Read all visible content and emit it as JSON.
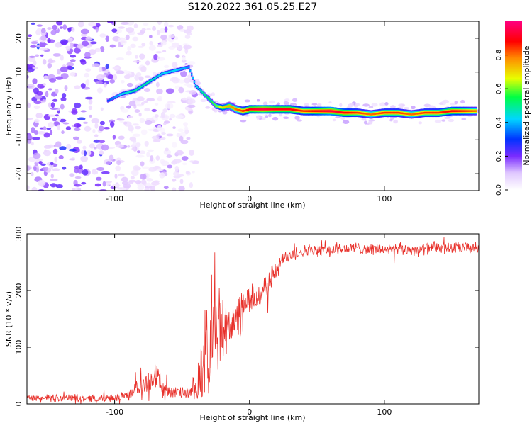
{
  "title": "S120.2022.361.05.25.E27",
  "colors": {
    "snr_line": "#e8302a",
    "background": "#ffffff",
    "axes": "#000000",
    "spectral_colormap": [
      "#ffffff",
      "#e8d0ff",
      "#7a2cff",
      "#0033ff",
      "#00d6ff",
      "#00ff44",
      "#e8ff00",
      "#ff8c00",
      "#ff0000",
      "#ff0080"
    ]
  },
  "chart_data": [
    {
      "type": "heatmap",
      "title": "",
      "xlabel": "Height of straight line (km)",
      "ylabel": "Frequency (Hz)",
      "xlim": [
        -165,
        170
      ],
      "ylim": [
        -25,
        25
      ],
      "xticks": [
        -100,
        0,
        100
      ],
      "yticks": [
        -20,
        -10,
        0,
        10,
        20
      ],
      "grid": false,
      "colorbar": {
        "label": "Normalized spectral amplitude",
        "range": [
          0,
          1
        ],
        "ticks": [
          0.0,
          0.2,
          0.4,
          0.6,
          0.8
        ],
        "colormap": "rainbow"
      },
      "ridge": {
        "name": "dominant frequency",
        "x": [
          -105,
          -95,
          -85,
          -75,
          -65,
          -55,
          -45,
          -40,
          -35,
          -30,
          -25,
          -20,
          -15,
          -10,
          -5,
          0,
          10,
          20,
          30,
          40,
          50,
          60,
          70,
          80,
          90,
          100,
          110,
          120,
          130,
          140,
          150,
          160,
          168
        ],
        "y": [
          1.5,
          3.5,
          4.5,
          7,
          9.5,
          10.5,
          11.5,
          6,
          4,
          2,
          0,
          -0.5,
          0,
          -1,
          -1.5,
          -1,
          -1,
          -1,
          -1,
          -1.5,
          -1.5,
          -1.5,
          -2,
          -2,
          -2.5,
          -2,
          -2,
          -2.5,
          -2,
          -2,
          -1.5,
          -1.5,
          -1.5
        ],
        "amplitude": [
          0.35,
          0.45,
          0.5,
          0.5,
          0.45,
          0.45,
          0.4,
          0.45,
          0.5,
          0.55,
          0.6,
          0.7,
          0.75,
          0.8,
          0.85,
          0.9,
          0.95,
          0.9,
          0.9,
          0.85,
          0.9,
          0.95,
          0.9,
          0.85,
          0.8,
          0.85,
          0.85,
          0.8,
          0.85,
          0.85,
          0.9,
          0.85,
          0.8
        ]
      },
      "noise_region": {
        "x_range": [
          -165,
          -40
        ],
        "y_range": [
          -25,
          25
        ],
        "amplitude": "low (0.05-0.25)"
      }
    },
    {
      "type": "line",
      "title": "",
      "xlabel": "Height of straight line (km)",
      "ylabel": "SNR (10 * v/v)",
      "xlim": [
        -165,
        170
      ],
      "ylim": [
        0,
        300
      ],
      "xticks": [
        -100,
        0,
        100
      ],
      "yticks": [
        0,
        100,
        200,
        300
      ],
      "grid": false,
      "series": [
        {
          "x": [
            -165,
            -140,
            -120,
            -100,
            -90,
            -85,
            -80,
            -75,
            -70,
            -65,
            -60,
            -55,
            -50,
            -45,
            -40,
            -35,
            -30,
            -25,
            -20,
            -15,
            -10,
            -5,
            0,
            5,
            10,
            15,
            20,
            25,
            30,
            40,
            50,
            60,
            80,
            100,
            120,
            140,
            160,
            170
          ],
          "y": [
            10,
            10,
            10,
            10,
            15,
            25,
            30,
            40,
            55,
            30,
            20,
            20,
            20,
            18,
            20,
            60,
            100,
            140,
            130,
            150,
            140,
            170,
            185,
            185,
            200,
            220,
            235,
            255,
            265,
            270,
            270,
            272,
            275,
            272,
            272,
            275,
            275,
            275
          ],
          "noise_amplitude": [
            8,
            8,
            8,
            8,
            10,
            15,
            20,
            25,
            30,
            25,
            12,
            12,
            12,
            12,
            40,
            70,
            90,
            80,
            80,
            60,
            50,
            40,
            30,
            30,
            30,
            25,
            20,
            18,
            15,
            12,
            12,
            12,
            12,
            12,
            12,
            12,
            12,
            12
          ]
        }
      ]
    }
  ]
}
